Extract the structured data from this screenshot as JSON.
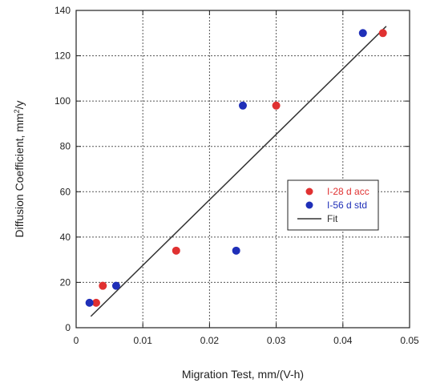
{
  "chart_data": {
    "type": "scatter",
    "xlabel": "Migration Test, mm/(V-h)",
    "ylabel_main": "Diffusion Coefficient, mm",
    "ylabel_sup": "2",
    "ylabel_tail": "/y",
    "xlim": [
      0,
      0.05
    ],
    "ylim": [
      0,
      140
    ],
    "x_ticks": [
      "0",
      "0.01",
      "0.02",
      "0.03",
      "0.04",
      "0.05"
    ],
    "y_ticks": [
      "0",
      "20",
      "40",
      "60",
      "80",
      "100",
      "120",
      "140"
    ],
    "grid": true,
    "legend_position": "center-right",
    "series": [
      {
        "name": "I-28 d acc",
        "color": "#e03131",
        "points": [
          [
            0.003,
            11
          ],
          [
            0.004,
            18.5
          ],
          [
            0.015,
            34
          ],
          [
            0.03,
            98
          ],
          [
            0.046,
            130
          ]
        ]
      },
      {
        "name": "I-56 d std",
        "color": "#1f2fb8",
        "points": [
          [
            0.002,
            11
          ],
          [
            0.006,
            18.5
          ],
          [
            0.024,
            34
          ],
          [
            0.025,
            98
          ],
          [
            0.043,
            130
          ]
        ]
      }
    ],
    "fit": {
      "name": "Fit",
      "color": "#333333",
      "points": [
        [
          0.0022,
          5
        ],
        [
          0.0465,
          133
        ]
      ]
    }
  }
}
